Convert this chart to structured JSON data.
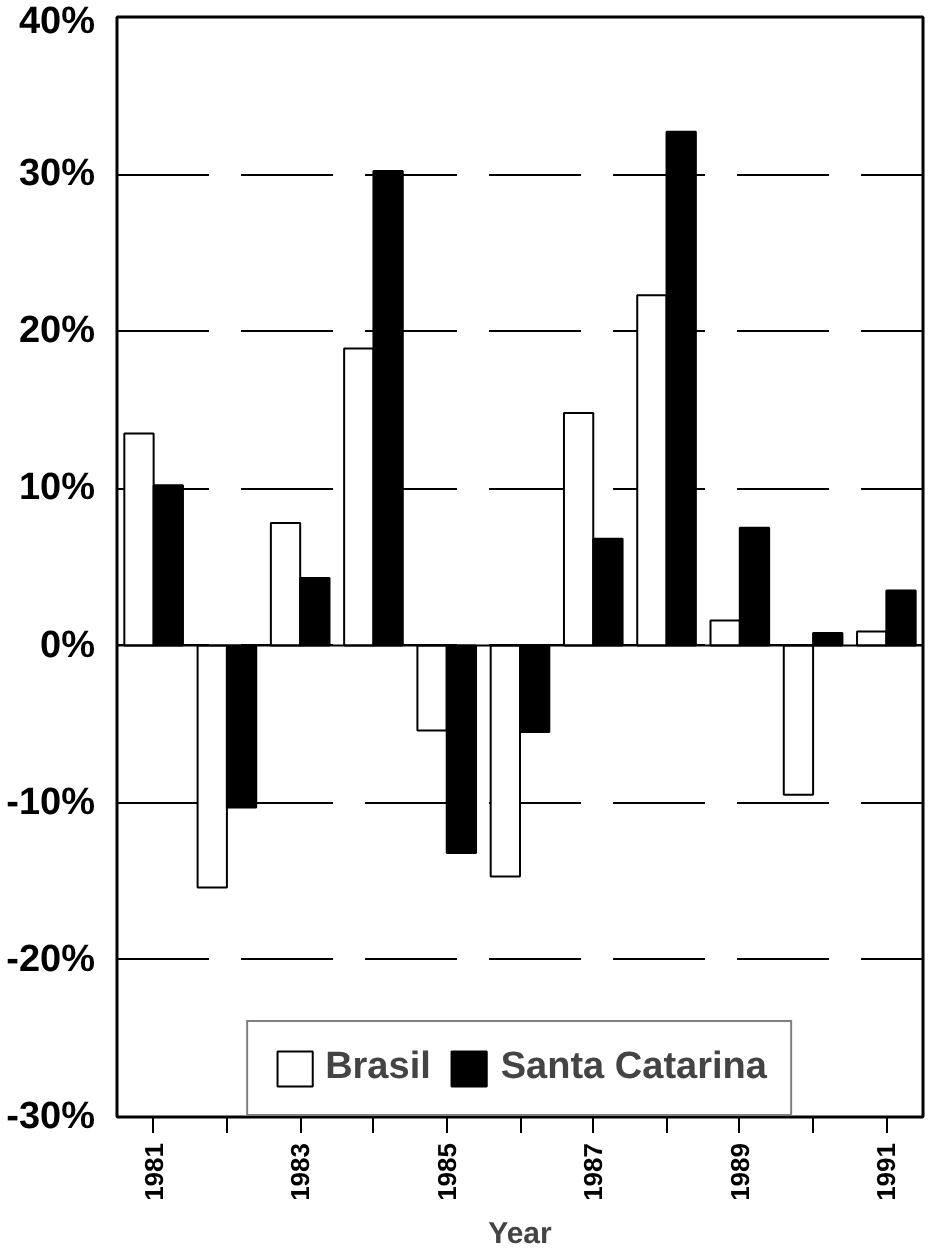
{
  "chart_data": {
    "type": "bar",
    "xlabel": "Year",
    "categories": [
      "1981",
      null,
      "1983",
      null,
      "1985",
      null,
      "1987",
      null,
      "1989",
      null,
      "1991"
    ],
    "series": [
      {
        "name": "Brasil",
        "color": "#ffffff",
        "values": [
          13.5,
          -15.4,
          7.8,
          18.9,
          -5.4,
          -14.7,
          14.8,
          22.3,
          1.6,
          -9.5,
          0.9
        ]
      },
      {
        "name": "Santa Catarina",
        "color": "#000000",
        "values": [
          10.2,
          -10.3,
          4.3,
          30.2,
          -13.2,
          -5.5,
          6.8,
          32.7,
          7.5,
          0.8,
          3.5
        ]
      }
    ],
    "ylim": [
      -30,
      40
    ],
    "yticks": [
      {
        "value": -30,
        "label": "-30%"
      },
      {
        "value": -20,
        "label": "-20%"
      },
      {
        "value": -10,
        "label": "-10%"
      },
      {
        "value": 0,
        "label": "0%"
      },
      {
        "value": 10,
        "label": "10%"
      },
      {
        "value": 20,
        "label": "20%"
      },
      {
        "value": 30,
        "label": "30%"
      },
      {
        "value": 40,
        "label": "40%"
      }
    ],
    "grid": "y",
    "legend": "bottom"
  }
}
